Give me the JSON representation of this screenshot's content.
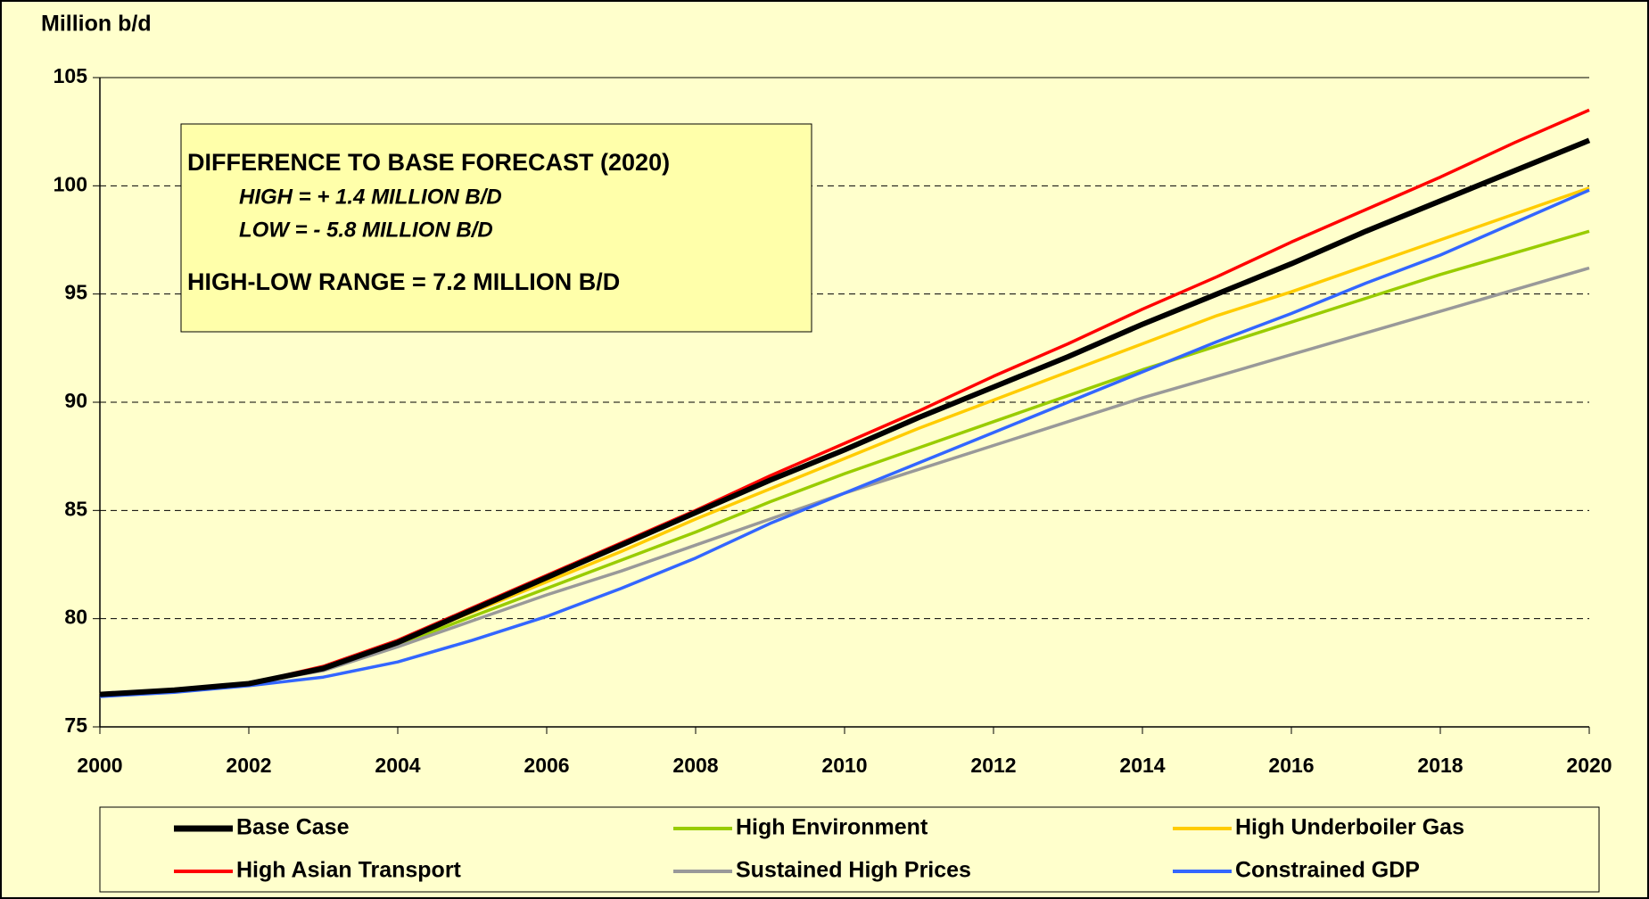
{
  "chart_data": {
    "type": "line",
    "y_axis_label": "Million b/d",
    "x": [
      2000,
      2001,
      2002,
      2003,
      2004,
      2005,
      2006,
      2007,
      2008,
      2009,
      2010,
      2011,
      2012,
      2013,
      2014,
      2015,
      2016,
      2017,
      2018,
      2019,
      2020
    ],
    "xlim": [
      2000,
      2020
    ],
    "xticks": [
      2000,
      2002,
      2004,
      2006,
      2008,
      2010,
      2012,
      2014,
      2016,
      2018,
      2020
    ],
    "ylim": [
      75,
      105
    ],
    "yticks": [
      75,
      80,
      85,
      90,
      95,
      100,
      105
    ],
    "grid": true,
    "legend": "bottom",
    "annotation": {
      "title": "DIFFERENCE TO BASE FORECAST (2020)",
      "high": "HIGH = + 1.4 MILLION B/D",
      "low": "LOW = - 5.8 MILLION B/D",
      "range": "HIGH-LOW RANGE = 7.2 MILLION B/D"
    },
    "series": [
      {
        "name": "Base Case",
        "color": "#000000",
        "values": [
          76.5,
          76.7,
          77.0,
          77.7,
          78.9,
          80.4,
          81.9,
          83.4,
          84.9,
          86.4,
          87.8,
          89.3,
          90.7,
          92.1,
          93.6,
          95.0,
          96.4,
          97.9,
          99.3,
          100.7,
          102.1
        ]
      },
      {
        "name": "High Environment",
        "color": "#99cc00",
        "values": [
          76.5,
          76.7,
          77.0,
          77.7,
          78.8,
          80.1,
          81.4,
          82.7,
          84.0,
          85.4,
          86.7,
          87.9,
          89.1,
          90.3,
          91.5,
          92.6,
          93.7,
          94.8,
          95.9,
          96.9,
          97.9
        ]
      },
      {
        "name": "High Underboiler Gas",
        "color": "#ffcc00",
        "values": [
          76.5,
          76.7,
          77.0,
          77.7,
          78.9,
          80.3,
          81.7,
          83.1,
          84.6,
          86.0,
          87.4,
          88.8,
          90.1,
          91.4,
          92.7,
          94.0,
          95.1,
          96.3,
          97.5,
          98.7,
          99.9
        ]
      },
      {
        "name": "High Asian Transport",
        "color": "#ff0000",
        "values": [
          76.5,
          76.7,
          77.0,
          77.8,
          79.0,
          80.5,
          82.0,
          83.5,
          85.0,
          86.6,
          88.1,
          89.6,
          91.2,
          92.7,
          94.3,
          95.8,
          97.4,
          98.9,
          100.4,
          102.0,
          103.5
        ]
      },
      {
        "name": "Sustained High Prices",
        "color": "#999999",
        "values": [
          76.5,
          76.7,
          77.0,
          77.6,
          78.7,
          79.9,
          81.1,
          82.2,
          83.4,
          84.6,
          85.8,
          86.9,
          88.0,
          89.1,
          90.2,
          91.2,
          92.2,
          93.2,
          94.2,
          95.2,
          96.2
        ]
      },
      {
        "name": "Constrained GDP",
        "color": "#3366ff",
        "values": [
          76.4,
          76.6,
          76.9,
          77.3,
          78.0,
          79.0,
          80.1,
          81.4,
          82.8,
          84.4,
          85.8,
          87.2,
          88.6,
          90.0,
          91.4,
          92.8,
          94.1,
          95.5,
          96.8,
          98.3,
          99.8
        ]
      }
    ]
  }
}
